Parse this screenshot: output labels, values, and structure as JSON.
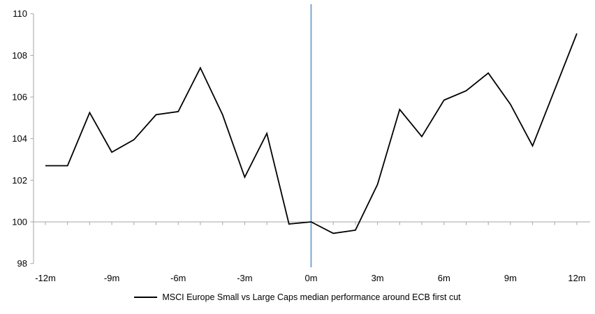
{
  "chart_data": {
    "type": "line",
    "title": "",
    "xlabel": "",
    "ylabel": "",
    "x": [
      -12,
      -11,
      -10,
      -9,
      -8,
      -7,
      -6,
      -5,
      -4,
      -3,
      -2,
      -1,
      0,
      1,
      2,
      3,
      4,
      5,
      6,
      7,
      8,
      9,
      10,
      11,
      12
    ],
    "series": [
      {
        "name": "MSCI Europe Small vs Large Caps median performance around ECB first cut",
        "color": "#000000",
        "values": [
          102.7,
          102.7,
          105.25,
          103.35,
          103.95,
          105.15,
          105.3,
          107.4,
          105.15,
          102.15,
          104.25,
          99.9,
          100.0,
          99.45,
          99.6,
          101.8,
          105.4,
          104.1,
          105.85,
          106.3,
          107.15,
          105.65,
          103.65,
          106.35,
          109.05
        ]
      }
    ],
    "xlim": [
      -12,
      12
    ],
    "ylim": [
      98,
      110
    ],
    "y_ticks": [
      98,
      100,
      102,
      104,
      106,
      108,
      110
    ],
    "y_tick_labels": [
      "98",
      "100",
      "102",
      "104",
      "106",
      "108",
      "110"
    ],
    "x_tick_values": [
      -12,
      -9,
      -6,
      -3,
      0,
      3,
      6,
      9,
      12
    ],
    "x_tick_labels": [
      "-12m",
      "-9m",
      "-6m",
      "-3m",
      "0m",
      "3m",
      "6m",
      "9m",
      "12m"
    ],
    "minor_x_tick_every": 1,
    "baseline_value": 100,
    "event_line_x": 0,
    "grid": "none",
    "legend_position": "bottom-center",
    "colors": {
      "series": "#000000",
      "event_line": "#7EA6CD",
      "axis": "#A6A6A6",
      "text": "#000000",
      "background": "#FFFFFF"
    }
  },
  "legend": {
    "label": "MSCI Europe Small vs Large Caps median performance around ECB first cut"
  }
}
